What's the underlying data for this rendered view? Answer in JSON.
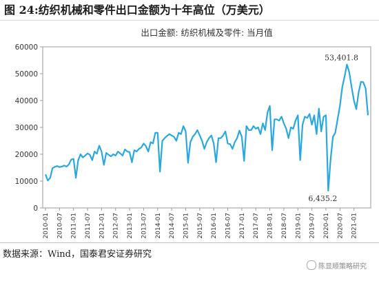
{
  "figure_title": "图 24:纺织机械和零件出口金额为十年高位（万美元）",
  "source_text": "数据来源：Wind，国泰君安证券研究",
  "watermark_text": "陈显顺策略研究",
  "chart_data": {
    "type": "line",
    "title": "出口金额: 纺织机械及零件: 当月值",
    "xlabel": "",
    "ylabel": "",
    "ylim": [
      0,
      60000
    ],
    "yticks": [
      "0",
      "10000",
      "20000",
      "30000",
      "40000",
      "50000",
      "60000"
    ],
    "xticks": [
      "2010-01",
      "2010-07",
      "2011-01",
      "2011-07",
      "2012-01",
      "2012-07",
      "2013-01",
      "2013-07",
      "2014-01",
      "2014-07",
      "2015-01",
      "2015-07",
      "2016-01",
      "2016-07",
      "2017-01",
      "2017-07",
      "2018-01",
      "2018-07",
      "2019-01",
      "2019-07",
      "2020-01",
      "2020-07",
      "2021-01"
    ],
    "grid": false,
    "line_color": "#29a8e0",
    "annotations": [
      {
        "label": "53,401.8",
        "x": "2020-10",
        "y": 53401.8
      },
      {
        "label": "6,435.2",
        "x": "2020-02",
        "y": 6435.2
      }
    ],
    "series": [
      {
        "start": "2010-01",
        "values": [
          12500,
          10200,
          11200,
          14800,
          15300,
          15600,
          15200,
          15400,
          15800,
          15400,
          16200,
          18000,
          18300,
          11200,
          17800,
          20000,
          18800,
          19500,
          20300,
          19800,
          17800,
          21000,
          20200,
          23200,
          21000,
          16000,
          20500,
          19800,
          19200,
          20000,
          19500,
          21000,
          20300,
          19500,
          21800,
          21000,
          20800,
          17000,
          21500,
          21000,
          22000,
          22500,
          24000,
          23000,
          21000,
          24500,
          24000,
          28000,
          28000,
          13500,
          25000,
          26000,
          26800,
          27500,
          27000,
          26500,
          25000,
          28000,
          27500,
          30500,
          28500,
          16800,
          24500,
          26500,
          27500,
          29000,
          27000,
          25000,
          22000,
          24500,
          26000,
          27000,
          24000,
          17000,
          26000,
          26000,
          27000,
          28500,
          24000,
          23800,
          22000,
          24500,
          26000,
          28800,
          26500,
          17500,
          30500,
          29000,
          29000,
          30500,
          29500,
          30000,
          27500,
          31500,
          29000,
          35500,
          38000,
          21500,
          33000,
          33000,
          32500,
          34000,
          31500,
          29500,
          26000,
          30000,
          29500,
          32500,
          34500,
          17800,
          31000,
          34000,
          33500,
          35000,
          31000,
          34500,
          27500,
          37000,
          28500,
          34000,
          34500,
          6435.2,
          18000,
          26500,
          28000,
          33000,
          38000,
          45000,
          49000,
          53401.8,
          50500,
          45000,
          40000,
          36800,
          43000,
          47000,
          46800,
          44500,
          34500
        ]
      }
    ]
  }
}
